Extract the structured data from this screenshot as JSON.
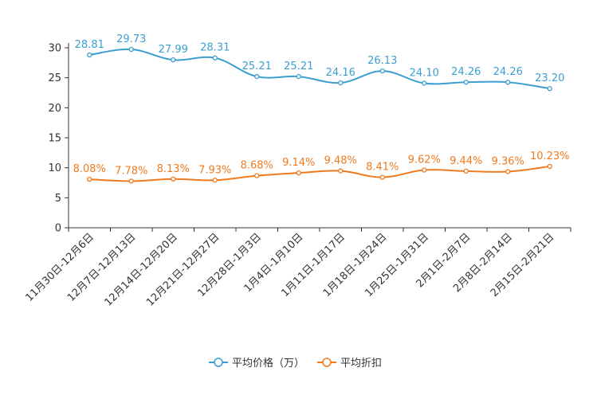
{
  "chart_data": {
    "type": "line",
    "title": "",
    "xlabel": "",
    "ylabel": "",
    "ylim": [
      0,
      30
    ],
    "yticks": [
      "0",
      "5",
      "10",
      "15",
      "20",
      "25",
      "30"
    ],
    "grid": false,
    "legend_position": "bottom",
    "categories": [
      "11月30日-12月6日",
      "12月7日-12月13日",
      "12月14日-12月20日",
      "12月21日-12月27日",
      "12月28日-1月3日",
      "1月4日-1月10日",
      "1月11日-1月17日",
      "1月18日-1月24日",
      "1月25日-1月31日",
      "2月1日-2月7日",
      "2月8日-2月14日",
      "2月15日-2月21日"
    ],
    "series": [
      {
        "name": "平均价格（万）",
        "color": "#3a9fd0",
        "values": [
          28.81,
          29.73,
          27.99,
          28.31,
          25.21,
          25.21,
          24.16,
          26.13,
          24.1,
          24.26,
          24.26,
          23.2
        ],
        "labels": [
          "28.81",
          "29.73",
          "27.99",
          "28.31",
          "25.21",
          "25.21",
          "24.16",
          "26.13",
          "24.10",
          "24.26",
          "24.26",
          "23.20"
        ]
      },
      {
        "name": "平均折扣",
        "color": "#f07a1e",
        "values": [
          8.08,
          7.78,
          8.13,
          7.93,
          8.68,
          9.14,
          9.48,
          8.41,
          9.62,
          9.44,
          9.36,
          10.23
        ],
        "labels": [
          "8.08%",
          "7.78%",
          "8.13%",
          "7.93%",
          "8.68%",
          "9.14%",
          "9.48%",
          "8.41%",
          "9.62%",
          "9.44%",
          "9.36%",
          "10.23%"
        ]
      }
    ]
  }
}
